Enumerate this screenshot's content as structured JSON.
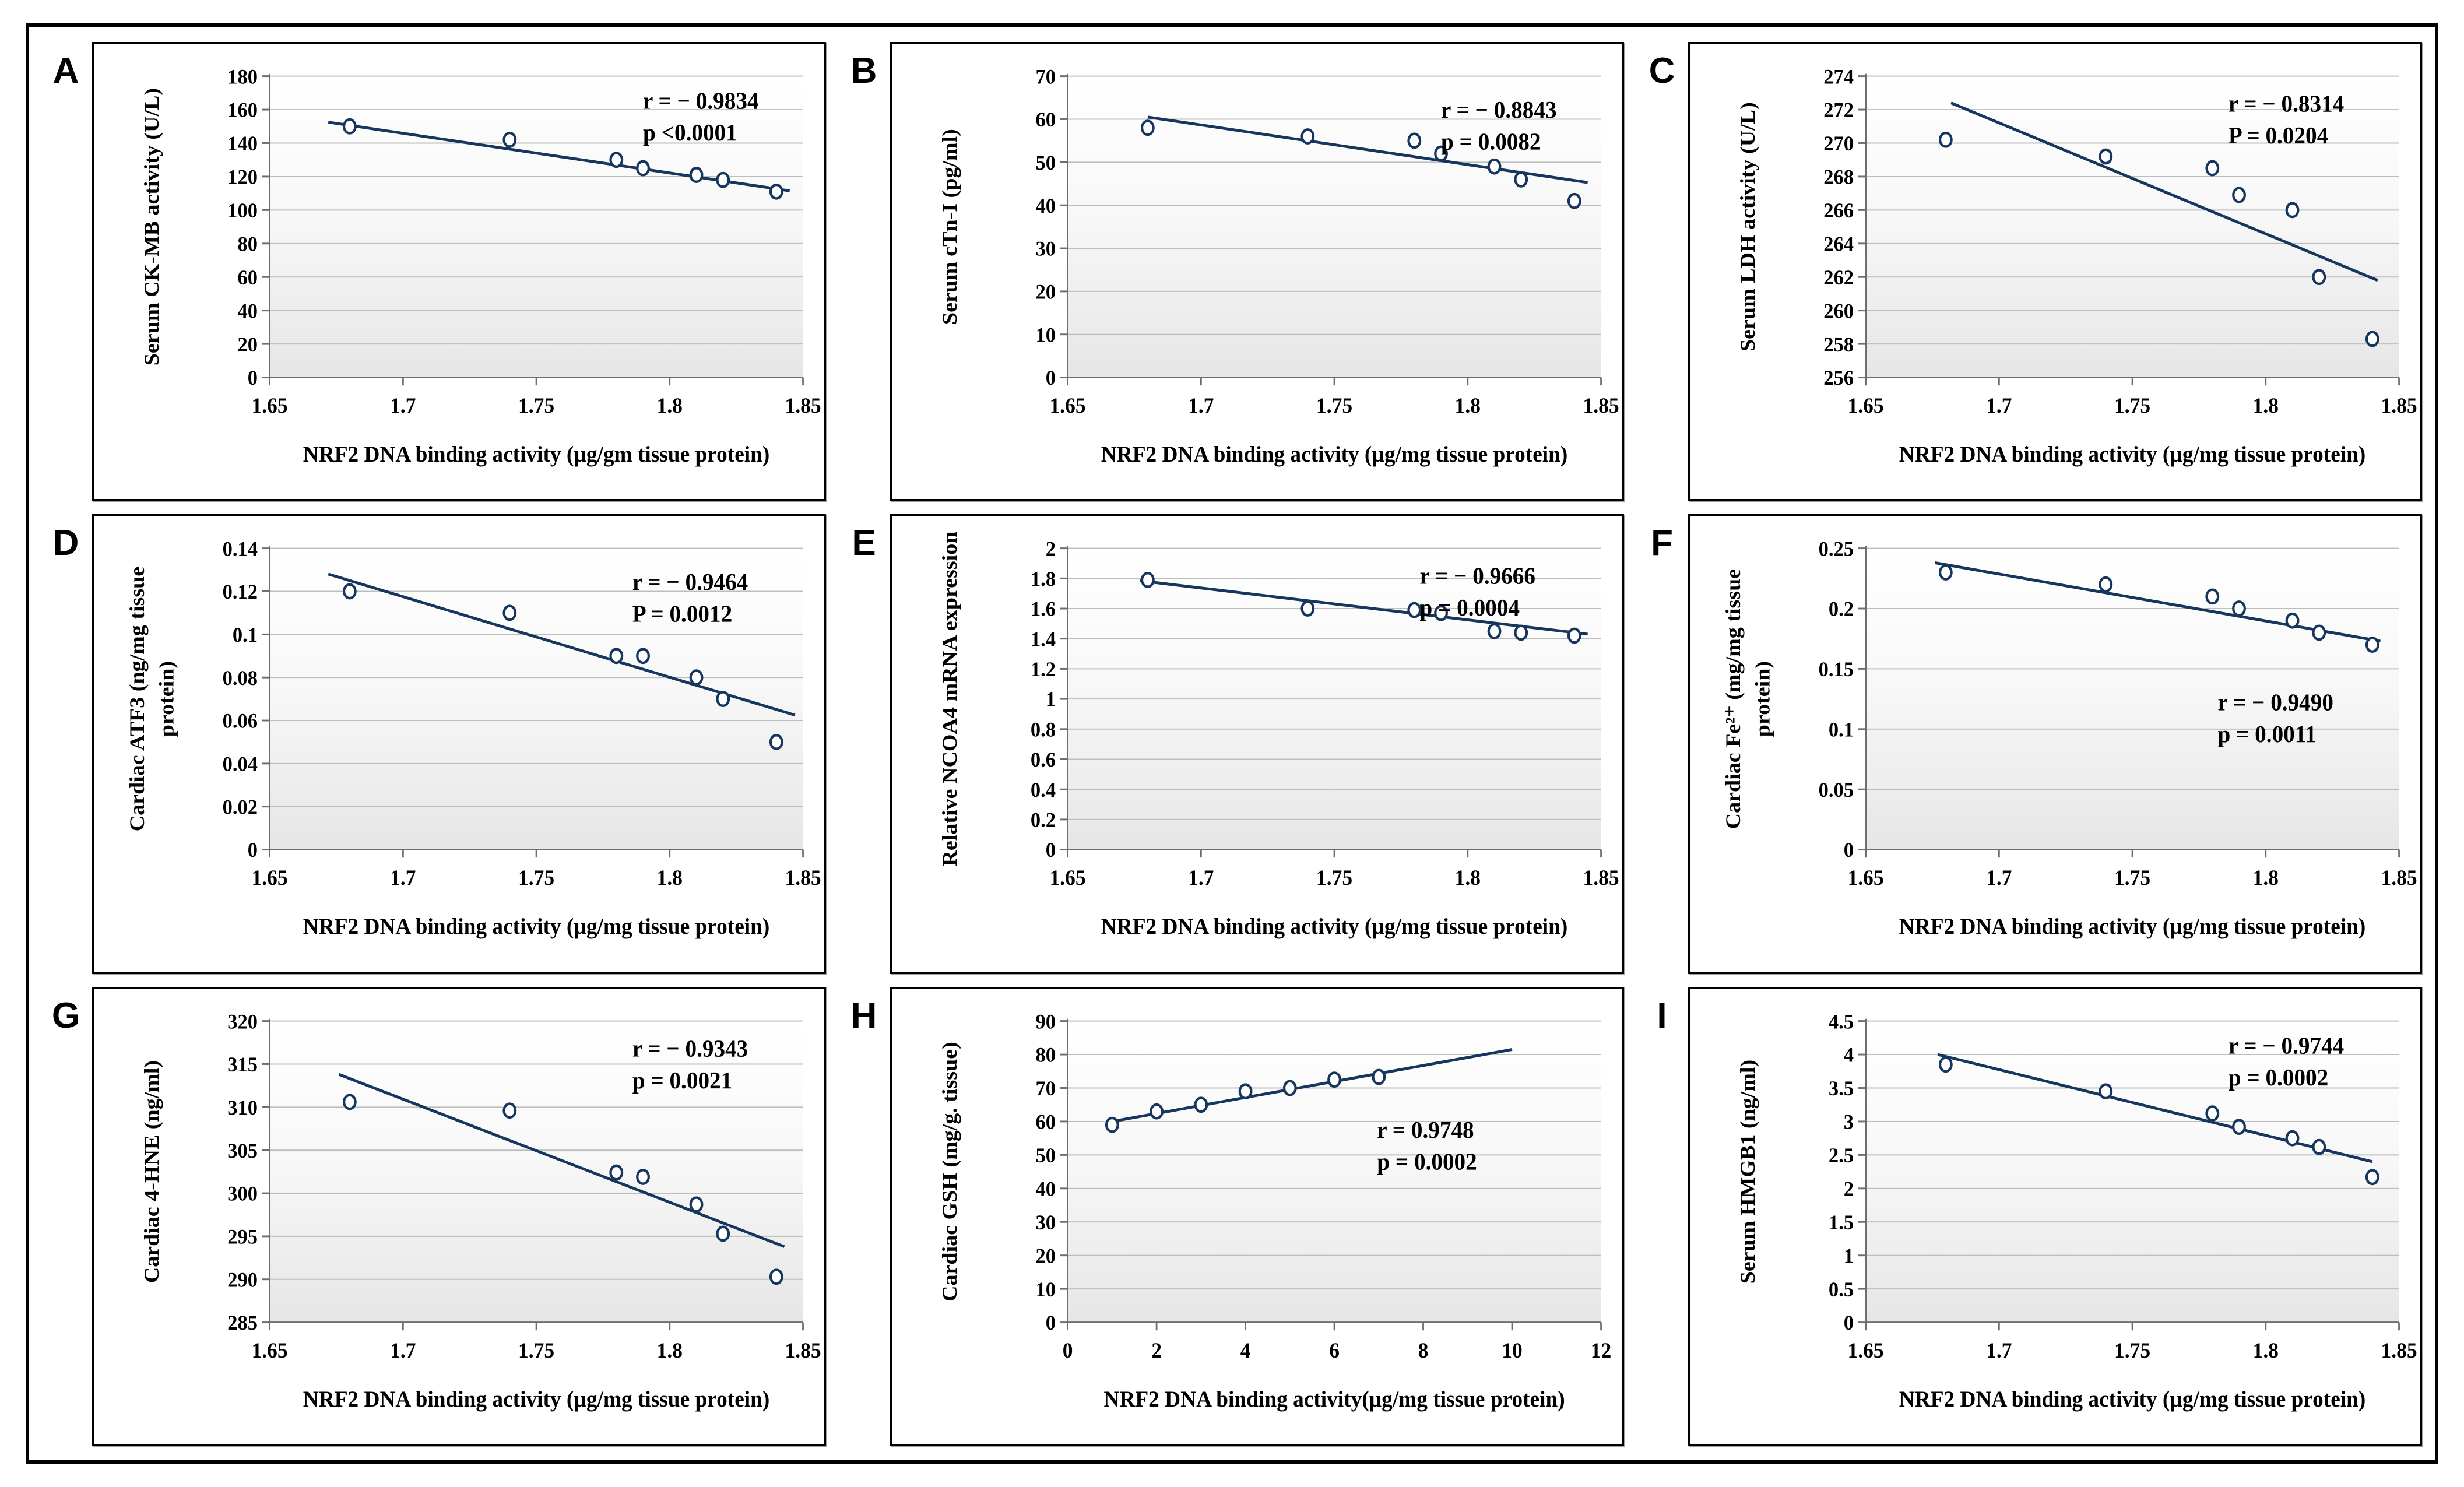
{
  "figure": {
    "description": "Correlation scatter panels A-I",
    "colors": {
      "marker_outline": "#17365d",
      "marker_fill": "#ffffff",
      "trend_line": "#17365d",
      "gridline": "#bdbdbd",
      "axis": "#6e6e6e",
      "text": "#000000",
      "plot_bg_top": "#ffffff",
      "plot_bg_bottom": "#e6e6e6"
    }
  },
  "chart_data": [
    {
      "type": "scatter",
      "letter": "A",
      "ylabel_lines": [
        "Serum CK-MB activity (U/L)"
      ],
      "xlabel": "NRF2 DNA binding activity (µg/gm tissue protein)",
      "xlim": [
        1.65,
        1.85
      ],
      "ylim": [
        0,
        180
      ],
      "xtick_values": [
        1.65,
        1.7,
        1.75,
        1.8,
        1.85
      ],
      "xtick_labels": [
        "1.65",
        "1.7",
        "1.75",
        "1.8",
        "1.85"
      ],
      "ytick_values": [
        0,
        20,
        40,
        60,
        80,
        100,
        120,
        140,
        160,
        180
      ],
      "ytick_labels": [
        "0",
        "20",
        "40",
        "60",
        "80",
        "100",
        "120",
        "140",
        "160",
        "180"
      ],
      "x": [
        1.68,
        1.74,
        1.78,
        1.79,
        1.81,
        1.82,
        1.84
      ],
      "y": [
        150,
        142,
        130,
        125,
        121,
        118,
        111
      ],
      "trend": [
        1.672,
        152.5,
        1.845,
        111.5
      ],
      "annotation": {
        "lines": [
          "r = − 0.9834",
          "p <0.0001"
        ],
        "fx": 0.7,
        "fy": 0.07
      }
    },
    {
      "type": "scatter",
      "letter": "B",
      "ylabel_lines": [
        "Serum cTn-I (pg/ml)"
      ],
      "xlabel": "NRF2 DNA binding activity (µg/mg tissue protein)",
      "xlim": [
        1.65,
        1.85
      ],
      "ylim": [
        0,
        70
      ],
      "xtick_values": [
        1.65,
        1.7,
        1.75,
        1.8,
        1.85
      ],
      "xtick_labels": [
        "1.65",
        "1.7",
        "1.75",
        "1.8",
        "1.85"
      ],
      "ytick_values": [
        0,
        10,
        20,
        30,
        40,
        50,
        60,
        70
      ],
      "ytick_labels": [
        "0",
        "10",
        "20",
        "30",
        "40",
        "50",
        "60",
        "70"
      ],
      "x": [
        1.68,
        1.74,
        1.78,
        1.79,
        1.81,
        1.82,
        1.84
      ],
      "y": [
        58,
        56,
        55,
        52,
        49,
        46,
        41
      ],
      "trend": [
        1.68,
        60.5,
        1.845,
        45.3
      ],
      "annotation": {
        "lines": [
          "r = − 0.8843",
          "p = 0.0082"
        ],
        "fx": 0.7,
        "fy": 0.1
      }
    },
    {
      "type": "scatter",
      "letter": "C",
      "ylabel_lines": [
        "Serum  LDH activity (U/L)"
      ],
      "xlabel": "NRF2 DNA binding  activity (µg/mg tissue protein)",
      "xlim": [
        1.65,
        1.85
      ],
      "ylim": [
        256,
        274
      ],
      "xtick_values": [
        1.65,
        1.7,
        1.75,
        1.8,
        1.85
      ],
      "xtick_labels": [
        "1.65",
        "1.7",
        "1.75",
        "1.8",
        "1.85"
      ],
      "ytick_values": [
        256,
        258,
        260,
        262,
        264,
        266,
        268,
        270,
        272,
        274
      ],
      "ytick_labels": [
        "256",
        "258",
        "260",
        "262",
        "264",
        "266",
        "268",
        "270",
        "272",
        "274"
      ],
      "x": [
        1.68,
        1.74,
        1.78,
        1.79,
        1.81,
        1.82,
        1.84
      ],
      "y": [
        270.2,
        269.2,
        268.5,
        266.9,
        266.0,
        262.0,
        258.3
      ],
      "trend": [
        1.682,
        272.4,
        1.842,
        261.8
      ],
      "annotation": {
        "lines": [
          "r = − 0.8314",
          "P = 0.0204"
        ],
        "fx": 0.68,
        "fy": 0.08
      }
    },
    {
      "type": "scatter",
      "letter": "D",
      "ylabel_lines": [
        "Cardiac ATF3 (ng/mg tissue",
        "protein)"
      ],
      "xlabel": "NRF2 DNA binding activity (µg/mg tissue protein)",
      "xlim": [
        1.65,
        1.85
      ],
      "ylim": [
        0,
        0.14
      ],
      "xtick_values": [
        1.65,
        1.7,
        1.75,
        1.8,
        1.85
      ],
      "xtick_labels": [
        "1.65",
        "1.7",
        "1.75",
        "1.8",
        "1.85"
      ],
      "ytick_values": [
        0,
        0.02,
        0.04,
        0.06,
        0.08,
        0.1,
        0.12,
        0.14
      ],
      "ytick_labels": [
        "0",
        "0.02",
        "0.04",
        "0.06",
        "0.08",
        "0.1",
        "0.12",
        "0.14"
      ],
      "x": [
        1.68,
        1.74,
        1.78,
        1.79,
        1.81,
        1.82,
        1.84
      ],
      "y": [
        0.12,
        0.11,
        0.09,
        0.09,
        0.08,
        0.07,
        0.05
      ],
      "trend": [
        1.672,
        0.128,
        1.847,
        0.0625
      ],
      "annotation": {
        "lines": [
          "r = − 0.9464",
          "P = 0.0012"
        ],
        "fx": 0.68,
        "fy": 0.1
      }
    },
    {
      "type": "scatter",
      "letter": "E",
      "ylabel_lines": [
        "Relative NCOA4 mRNA expression"
      ],
      "xlabel": "NRF2 DNA binding  activity (µg/mg tissue protein)",
      "xlim": [
        1.65,
        1.85
      ],
      "ylim": [
        0,
        2
      ],
      "xtick_values": [
        1.65,
        1.7,
        1.75,
        1.8,
        1.85
      ],
      "xtick_labels": [
        "1.65",
        "1.7",
        "1.75",
        "1.8",
        "1.85"
      ],
      "ytick_values": [
        0,
        0.2,
        0.4,
        0.6,
        0.8,
        1,
        1.2,
        1.4,
        1.6,
        1.8,
        2
      ],
      "ytick_labels": [
        "0",
        "0.2",
        "0.4",
        "0.6",
        "0.8",
        "1",
        "1.2",
        "1.4",
        "1.6",
        "1.8",
        "2"
      ],
      "x": [
        1.68,
        1.74,
        1.78,
        1.79,
        1.81,
        1.82,
        1.84
      ],
      "y": [
        1.79,
        1.6,
        1.59,
        1.57,
        1.45,
        1.44,
        1.42
      ],
      "trend": [
        1.677,
        1.785,
        1.845,
        1.43
      ],
      "annotation": {
        "lines": [
          "r = − 0.9666",
          "p = 0.0004"
        ],
        "fx": 0.66,
        "fy": 0.08
      }
    },
    {
      "type": "scatter",
      "letter": "F",
      "ylabel_lines": [
        "Cardiac Fe²⁺ (mg/mg tissue",
        "protein)"
      ],
      "xlabel": "NRF2 DNA binding  activity (µg/mg tissue protein)",
      "xlim": [
        1.65,
        1.85
      ],
      "ylim": [
        0,
        0.25
      ],
      "xtick_values": [
        1.65,
        1.7,
        1.75,
        1.8,
        1.85
      ],
      "xtick_labels": [
        "1.65",
        "1.7",
        "1.75",
        "1.8",
        "1.85"
      ],
      "ytick_values": [
        0,
        0.05,
        0.1,
        0.15,
        0.2,
        0.25
      ],
      "ytick_labels": [
        "0",
        "0.05",
        "0.1",
        "0.15",
        "0.2",
        "0.25"
      ],
      "x": [
        1.68,
        1.74,
        1.78,
        1.79,
        1.81,
        1.82,
        1.84
      ],
      "y": [
        0.23,
        0.22,
        0.21,
        0.2,
        0.19,
        0.18,
        0.17
      ],
      "trend": [
        1.676,
        0.238,
        1.843,
        0.173
      ],
      "annotation": {
        "lines": [
          "r = − 0.9490",
          "p = 0.0011"
        ],
        "fx": 0.66,
        "fy": 0.5
      }
    },
    {
      "type": "scatter",
      "letter": "G",
      "ylabel_lines": [
        "Cardiac 4-HNE (ng/ml)"
      ],
      "xlabel": "NRF2 DNA binding  activity (µg/mg tissue protein)",
      "xlim": [
        1.65,
        1.85
      ],
      "ylim": [
        285,
        320
      ],
      "xtick_values": [
        1.65,
        1.7,
        1.75,
        1.8,
        1.85
      ],
      "xtick_labels": [
        "1.65",
        "1.7",
        "1.75",
        "1.8",
        "1.85"
      ],
      "ytick_values": [
        285,
        290,
        295,
        300,
        305,
        310,
        315,
        320
      ],
      "ytick_labels": [
        "285",
        "290",
        "295",
        "300",
        "305",
        "310",
        "315",
        "320"
      ],
      "x": [
        1.68,
        1.74,
        1.78,
        1.79,
        1.81,
        1.82,
        1.84
      ],
      "y": [
        310.6,
        309.6,
        302.4,
        301.9,
        298.7,
        295.3,
        290.3
      ],
      "trend": [
        1.676,
        313.8,
        1.843,
        293.8
      ],
      "annotation": {
        "lines": [
          "r = − 0.9343",
          "p = 0.0021"
        ],
        "fx": 0.68,
        "fy": 0.08
      }
    },
    {
      "type": "scatter",
      "letter": "H",
      "ylabel_lines": [
        "Cardiac GSH (mg/g. tissue)"
      ],
      "xlabel": "NRF2 DNA binding  activity(µg/mg tissue protein)",
      "xlim": [
        0,
        12
      ],
      "ylim": [
        0,
        90
      ],
      "xtick_values": [
        0,
        2,
        4,
        6,
        8,
        10,
        12
      ],
      "xtick_labels": [
        "0",
        "2",
        "4",
        "6",
        "8",
        "10",
        "12"
      ],
      "ytick_values": [
        0,
        10,
        20,
        30,
        40,
        50,
        60,
        70,
        80,
        90
      ],
      "ytick_labels": [
        "0",
        "10",
        "20",
        "30",
        "40",
        "50",
        "60",
        "70",
        "80",
        "90"
      ],
      "x": [
        1,
        2,
        3,
        4,
        5,
        6,
        7
      ],
      "y": [
        59,
        63,
        65,
        69,
        70,
        72.5,
        73.3
      ],
      "trend": [
        1,
        60,
        10,
        81.5
      ],
      "annotation": {
        "lines": [
          "r = 0.9748",
          "p = 0.0002"
        ],
        "fx": 0.58,
        "fy": 0.35
      }
    },
    {
      "type": "scatter",
      "letter": "I",
      "ylabel_lines": [
        "Serum HMGB1 (ng/ml)"
      ],
      "xlabel": "NRF2 DNA binding  activity (µg/mg tissue protein)",
      "xlim": [
        1.65,
        1.85
      ],
      "ylim": [
        0,
        4.5
      ],
      "xtick_values": [
        1.65,
        1.7,
        1.75,
        1.8,
        1.85
      ],
      "xtick_labels": [
        "1.65",
        "1.7",
        "1.75",
        "1.8",
        "1.85"
      ],
      "ytick_values": [
        0,
        0.5,
        1,
        1.5,
        2,
        2.5,
        3,
        3.5,
        4,
        4.5
      ],
      "ytick_labels": [
        "0",
        "0.5",
        "1",
        "1.5",
        "2",
        "2.5",
        "3",
        "3.5",
        "4",
        "4.5"
      ],
      "x": [
        1.68,
        1.74,
        1.78,
        1.79,
        1.81,
        1.82,
        1.84
      ],
      "y": [
        3.85,
        3.45,
        3.12,
        2.92,
        2.75,
        2.62,
        2.17
      ],
      "trend": [
        1.677,
        4.0,
        1.84,
        2.4
      ],
      "annotation": {
        "lines": [
          "r = − 0.9744",
          "p = 0.0002"
        ],
        "fx": 0.68,
        "fy": 0.07
      }
    }
  ]
}
